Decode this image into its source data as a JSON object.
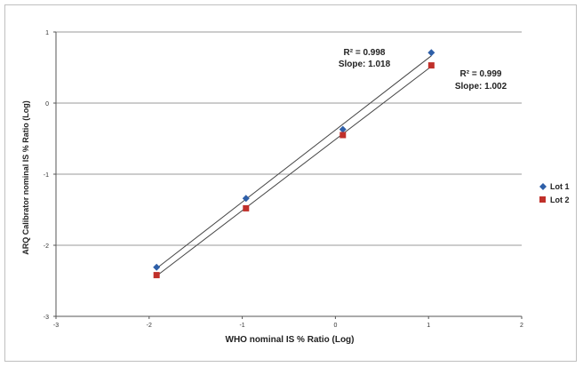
{
  "chart_data": {
    "type": "scatter",
    "title": "",
    "xlabel": "WHO nominal IS % Ratio (Log)",
    "ylabel": "ARQ Calibrator nominal IS % Ratio (Log)",
    "xlim": [
      -3,
      2
    ],
    "ylim": [
      -3,
      1
    ],
    "x_ticks": [
      "-3",
      "-2",
      "-1",
      "0",
      "1",
      "2"
    ],
    "y_ticks": [
      "1",
      "0",
      "-1",
      "-2",
      "-3"
    ],
    "grid": "horizontal",
    "legend": "right",
    "series": [
      {
        "name": "Lot 1",
        "color": "#2e5fa8",
        "marker": "diamond",
        "x": [
          -1.92,
          -0.96,
          0.08,
          1.03
        ],
        "y": [
          -2.31,
          -1.34,
          -0.37,
          0.71
        ],
        "trendline": {
          "r2_label": "R² = 0.998",
          "slope_label": "Slope: 1.018"
        }
      },
      {
        "name": "Lot 2",
        "color": "#c0302a",
        "marker": "square",
        "x": [
          -1.92,
          -0.96,
          0.08,
          1.03
        ],
        "y": [
          -2.42,
          -1.48,
          -0.45,
          0.53
        ],
        "trendline": {
          "r2_label": "R² = 0.999",
          "slope_label": "Slope: 1.002"
        }
      }
    ]
  }
}
